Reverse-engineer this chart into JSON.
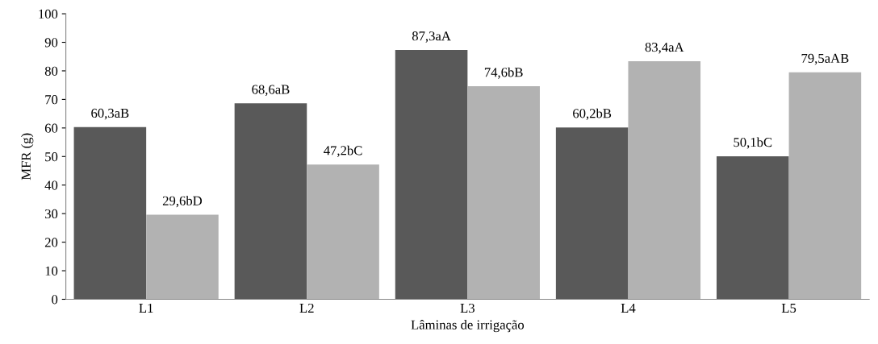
{
  "chart_data": {
    "type": "bar",
    "xlabel": "Lâminas de irrigação",
    "ylabel": "MFR (g)",
    "categories": [
      "L1",
      "L2",
      "L3",
      "L4",
      "L5"
    ],
    "series": [
      {
        "color": "#595959",
        "values": [
          60.3,
          68.6,
          87.3,
          60.2,
          50.1
        ],
        "value_labels": [
          "60,3aB",
          "68,6aB",
          "87,3aA",
          "60,2bB",
          "50,1bC"
        ]
      },
      {
        "color": "#b2b2b2",
        "values": [
          29.6,
          47.2,
          74.6,
          83.4,
          79.5
        ],
        "value_labels": [
          "29,6bD",
          "47,2bC",
          "74,6bB",
          "83,4aA",
          "79,5aAB"
        ]
      }
    ],
    "ylim": [
      0,
      100
    ],
    "yticks": [
      0,
      10,
      20,
      30,
      40,
      50,
      60,
      70,
      80,
      90,
      100
    ],
    "grid": false,
    "legend": false
  }
}
